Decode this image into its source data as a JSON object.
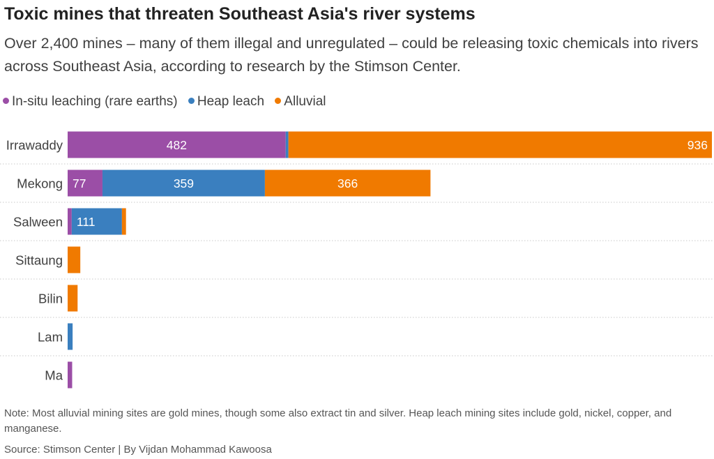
{
  "header": {
    "title": "Toxic mines that threaten Southeast Asia's river systems",
    "subtitle": "Over 2,400 mines – many of them illegal and unregulated – could be releasing toxic chemicals into rivers across Southeast Asia, according to research by the Stimson Center."
  },
  "legend": [
    {
      "label": "In-situ leaching (rare earths)",
      "color": "#9b4ea6"
    },
    {
      "label": "Heap leach",
      "color": "#3a7fbf"
    },
    {
      "label": "Alluvial",
      "color": "#f07a00"
    }
  ],
  "footer": {
    "note": "Note: Most alluvial mining sites are gold mines, though some also extract tin and silver. Heap leach mining sites include gold, nickel, copper, and manganese.",
    "source": "Source: Stimson Center | By Vijdan Mohammad Kawoosa"
  },
  "chart_data": {
    "type": "bar",
    "orientation": "horizontal",
    "stacked": true,
    "categories": [
      "Irrawaddy",
      "Mekong",
      "Salween",
      "Sittaung",
      "Bilin",
      "Lam",
      "Ma"
    ],
    "series": [
      {
        "name": "In-situ leaching (rare earths)",
        "color": "#9b4ea6",
        "values": [
          482,
          77,
          9,
          0,
          0,
          0,
          10
        ],
        "labels": [
          "482",
          "77",
          "",
          "",
          "",
          "",
          ""
        ]
      },
      {
        "name": "Heap leach",
        "color": "#3a7fbf",
        "values": [
          6,
          359,
          111,
          0,
          0,
          11,
          0
        ],
        "labels": [
          "",
          "359",
          "111",
          "",
          "",
          "",
          ""
        ]
      },
      {
        "name": "Alluvial",
        "color": "#f07a00",
        "values": [
          936,
          366,
          9,
          28,
          22,
          0,
          0
        ],
        "labels": [
          "936",
          "366",
          "",
          "",
          "",
          "",
          ""
        ]
      }
    ],
    "xlim": [
      0,
      1424
    ],
    "grid": "horizontal dotted separators",
    "legend_position": "top-left"
  }
}
